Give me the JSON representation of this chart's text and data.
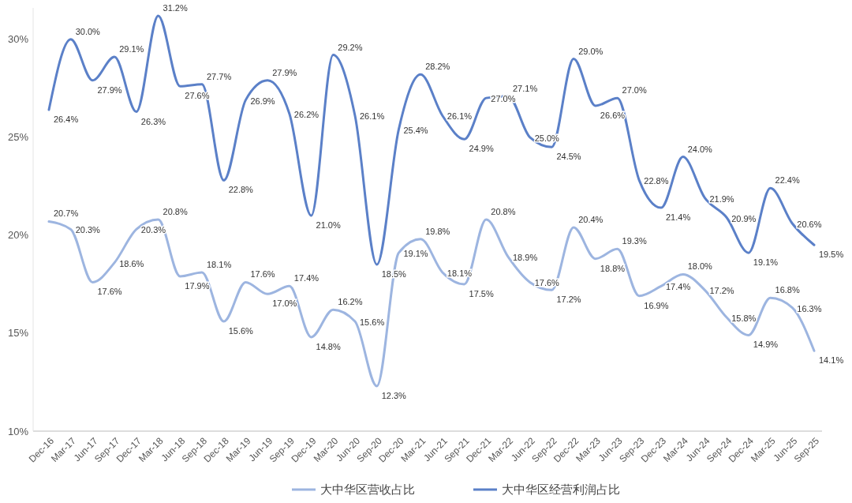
{
  "chart_data": {
    "type": "line",
    "categories": [
      "Dec-16",
      "Mar-17",
      "Jun-17",
      "Sep-17",
      "Dec-17",
      "Mar-18",
      "Jun-18",
      "Sep-18",
      "Dec-18",
      "Mar-19",
      "Jun-19",
      "Sep-19",
      "Dec-19",
      "Mar-20",
      "Jun-20",
      "Sep-20",
      "Dec-20",
      "Mar-21",
      "Jun-21",
      "Sep-21",
      "Dec-21",
      "Mar-22",
      "Jun-22",
      "Sep-22",
      "Dec-22",
      "Mar-23",
      "Jun-23",
      "Sep-23",
      "Dec-23",
      "Mar-24",
      "Jun-24",
      "Sep-24",
      "Dec-24",
      "Mar-25",
      "Jun-25",
      "Sep-25"
    ],
    "series": [
      {
        "name": "大中华区营收占比",
        "color": "#9db5e0",
        "values": [
          20.7,
          20.3,
          17.6,
          18.6,
          20.3,
          20.8,
          17.9,
          18.1,
          15.6,
          17.6,
          17.0,
          17.4,
          14.8,
          16.2,
          15.6,
          12.3,
          19.1,
          19.8,
          18.1,
          17.5,
          20.8,
          18.9,
          17.6,
          17.2,
          20.4,
          18.8,
          19.3,
          16.9,
          17.4,
          18.0,
          17.2,
          15.8,
          14.9,
          16.8,
          16.3,
          14.1
        ],
        "value_labels": [
          "20.7%",
          "20.3%",
          "17.6%",
          "18.6%",
          "20.3%",
          "20.8%",
          "17.9%",
          "18.1%",
          "15.6%",
          "17.6%",
          "17.0%",
          "17.4%",
          "14.8%",
          "16.2%",
          "15.6%",
          "12.3%",
          "19.1%",
          "19.8%",
          "18.1%",
          "17.5%",
          "20.8%",
          "18.9%",
          "17.6%",
          "17.2%",
          "20.4%",
          "18.8%",
          "19.3%",
          "16.9%",
          "17.4%",
          "18.0%",
          "17.2%",
          "15.8%",
          "14.9%",
          "16.8%",
          "16.3%",
          "14.1%"
        ]
      },
      {
        "name": "大中华区经营利润占比",
        "color": "#5b80c8",
        "values": [
          26.4,
          30.0,
          27.9,
          29.1,
          26.3,
          31.2,
          27.6,
          27.7,
          22.8,
          26.9,
          27.9,
          26.2,
          21.0,
          29.2,
          26.1,
          18.5,
          25.4,
          28.2,
          26.1,
          24.9,
          27.0,
          27.1,
          25.0,
          24.5,
          29.0,
          26.6,
          27.0,
          22.8,
          21.4,
          24.0,
          21.9,
          20.9,
          19.1,
          22.4,
          20.6,
          19.5
        ],
        "value_labels": [
          "26.4%",
          "30.0%",
          "27.9%",
          "29.1%",
          "26.3%",
          "31.2%",
          "27.6%",
          "27.7%",
          "22.8%",
          "26.9%",
          "27.9%",
          "26.2%",
          "21.0%",
          "29.2%",
          "26.1%",
          "18.5%",
          "25.4%",
          "28.2%",
          "26.1%",
          "24.9%",
          "27.0%",
          "27.1%",
          "25.0%",
          "24.5%",
          "29.0%",
          "26.6%",
          "27.0%",
          "22.8%",
          "21.4%",
          "24.0%",
          "21.9%",
          "20.9%",
          "19.1%",
          "22.4%",
          "20.6%",
          "19.5%"
        ]
      }
    ],
    "ylim": [
      10,
      31.6
    ],
    "yticks": [
      {
        "value": 10,
        "label": "10%"
      },
      {
        "value": 15,
        "label": "15%"
      },
      {
        "value": 20,
        "label": "20%"
      },
      {
        "value": 25,
        "label": "25%"
      },
      {
        "value": 30,
        "label": "30%"
      }
    ],
    "grid": false,
    "legend": "bottom",
    "marker": "none",
    "line_style": "solid"
  }
}
